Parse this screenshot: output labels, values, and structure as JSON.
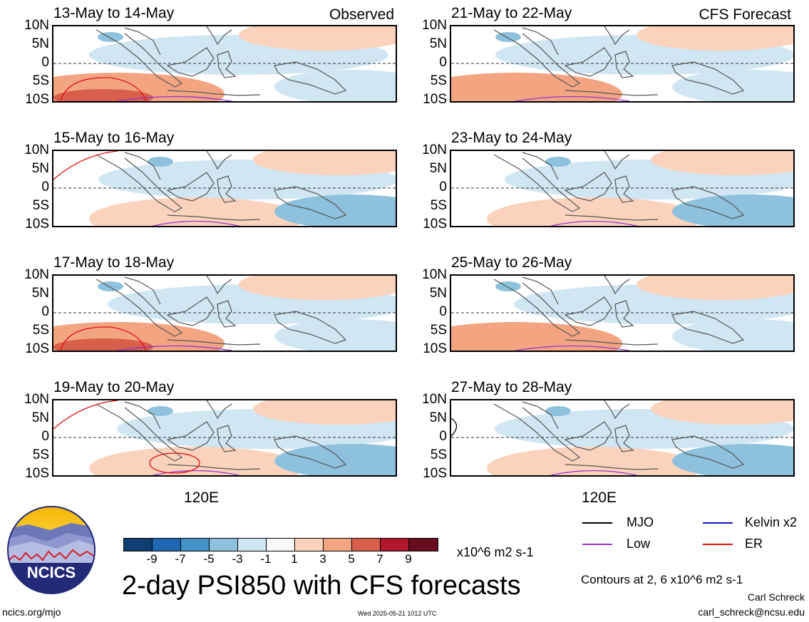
{
  "panels": [
    {
      "title": "13-May to 14-May",
      "label": "Observed"
    },
    {
      "title": "21-May to 22-May",
      "label": "CFS Forecast"
    },
    {
      "title": "15-May to 16-May",
      "label": ""
    },
    {
      "title": "23-May to 24-May",
      "label": ""
    },
    {
      "title": "17-May to 18-May",
      "label": ""
    },
    {
      "title": "25-May to 26-May",
      "label": ""
    },
    {
      "title": "19-May to 20-May",
      "label": ""
    },
    {
      "title": "27-May to 28-May",
      "label": ""
    }
  ],
  "lat_ticks": [
    "10N",
    "5N",
    "0",
    "5S",
    "10S"
  ],
  "lon_tick": "120E",
  "colorbar": {
    "colors": [
      "#0d3f73",
      "#1f68b1",
      "#4392c8",
      "#8dc1dd",
      "#d0e6f2",
      "#f8f8f8",
      "#fbd3bd",
      "#f3a582",
      "#d75f4c",
      "#b2182c",
      "#680d20"
    ],
    "ticks": [
      "-9",
      "-7",
      "-5",
      "-3",
      "-1",
      "1",
      "3",
      "5",
      "7",
      "9"
    ],
    "units": "x10^6 m2 s-1"
  },
  "title": "2-day PSI850 with CFS forecasts",
  "legend": [
    {
      "name": "MJO",
      "color": "#000000"
    },
    {
      "name": "Kelvin x2",
      "color": "#1010d0"
    },
    {
      "name": "Low",
      "color": "#9932cc"
    },
    {
      "name": "ER",
      "color": "#e01010"
    }
  ],
  "contour_note": "Contours at 2, 6 x10^6 m2 s-1",
  "credit_name": "Carl Schreck",
  "credit_email": "carl_schreck@ncsu.edu",
  "website": "ncics.org/mjo",
  "timestamp": "Wed 2025-05-21 1012 UTC",
  "logo_text": "NCICS"
}
